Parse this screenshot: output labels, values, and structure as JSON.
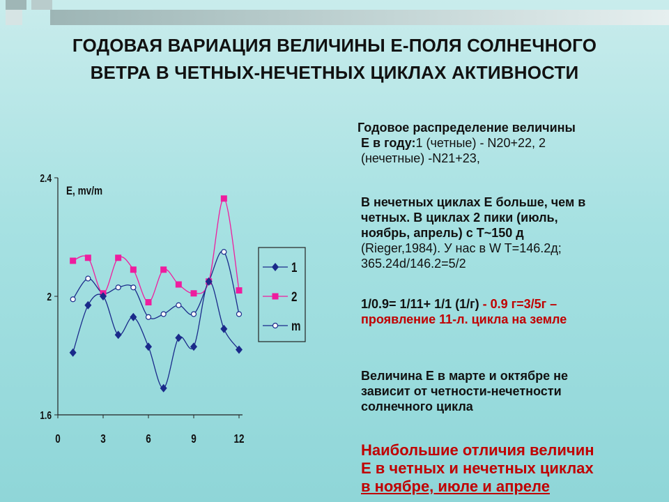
{
  "title": {
    "line1": "ГОДОВАЯ ВАРИАЦИЯ ВЕЛИЧИНЫ Е-ПОЛЯ СОЛНЕЧНОГО",
    "line2": "ВЕТРА В ЧЕТНЫХ-НЕЧЕТНЫХ ЦИКЛАХ АКТИВНОСТИ"
  },
  "text": {
    "p1_line1": "Годовое распределение величины",
    "p1_bold": "Е в году:",
    "p1_rest": "1 (четные) - N20+22,    2",
    "p1_line3": "(нечетные) -N21+23,",
    "p2_line1": "В нечетных циклах Е больше, чем в",
    "p2_line2": "четных. В циклах 2 пики (июль,",
    "p2_line3": "ноябрь, апрель)  с T~150 д",
    "p2_line4": "(Rieger,1984).  У нас  в W T=146.2д;",
    "p2_line5": "365.24d/146.2=5/2",
    "p3_black": "1/0.9= 1/11+ 1/1 (1/г)",
    "p3_red1": "  - 0.9 г=3/5г –",
    "p3_red2": "проявление 11-л. цикла  на земле",
    "p4_line1": "Величина Е  в марте  и  октябре не",
    "p4_line2": "зависит от  четности-нечетности",
    "p4_line3": "солнечного цикла",
    "p5_line1": "Наибольшие отличия  величин",
    "p5_line2": "Е  в четных и нечетных циклах",
    "p5_line3": "в ноябре, июле и апреле"
  },
  "chart_data": {
    "type": "line",
    "ylabel": "E, mv/m",
    "ylim": [
      1.6,
      2.4
    ],
    "xlim": [
      0,
      12
    ],
    "y_ticks": [
      "2.4",
      "2",
      "1.6"
    ],
    "x_ticks": [
      "0",
      "3",
      "6",
      "9",
      "12"
    ],
    "x": [
      1,
      2,
      3,
      4,
      5,
      6,
      7,
      8,
      9,
      10,
      11,
      12
    ],
    "series": [
      {
        "name": "1",
        "color": "#1a2a8a",
        "marker": "diamond",
        "values": [
          1.81,
          1.97,
          2.0,
          1.87,
          1.93,
          1.83,
          1.69,
          1.86,
          1.83,
          2.05,
          1.89,
          1.82
        ]
      },
      {
        "name": "2",
        "color": "#ee1d9e",
        "marker": "square",
        "values": [
          2.12,
          2.13,
          2.01,
          2.13,
          2.09,
          1.98,
          2.09,
          2.04,
          2.01,
          2.05,
          2.33,
          2.02
        ]
      },
      {
        "name": "m",
        "color": "#1a2a8a",
        "marker": "circle",
        "values": [
          1.99,
          2.06,
          2.01,
          2.03,
          2.03,
          1.93,
          1.94,
          1.97,
          1.94,
          2.05,
          2.15,
          1.94
        ]
      }
    ],
    "legend_position": "right",
    "grid": false
  }
}
